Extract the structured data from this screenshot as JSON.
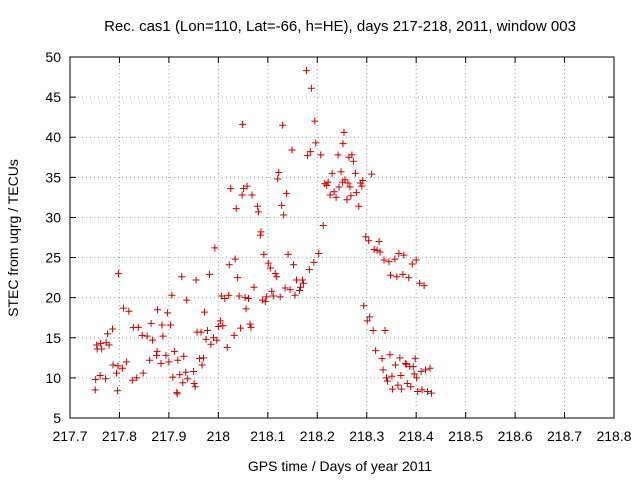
{
  "chart_data": {
    "type": "scatter",
    "title": "Rec. cas1 (Lon=110, Lat=-66, h=HE), days 217-218, 2011, window 003",
    "xlabel": "GPS time / Days of year 2011",
    "ylabel": "STEC from uqrg / TECUs",
    "xlim": [
      217.7,
      218.8
    ],
    "ylim": [
      5,
      50
    ],
    "xticks": [
      217.7,
      217.8,
      217.9,
      218.0,
      218.1,
      218.2,
      218.3,
      218.4,
      218.5,
      218.6,
      218.7,
      218.8
    ],
    "xtick_labels": [
      "217.7",
      "217.8",
      "217.9",
      "218",
      "218.1",
      "218.2",
      "218.3",
      "218.4",
      "218.5",
      "218.6",
      "218.7",
      "218.8"
    ],
    "yticks": [
      5,
      10,
      15,
      20,
      25,
      30,
      35,
      40,
      45,
      50
    ],
    "ytick_labels": [
      "5",
      "10",
      "15",
      "20",
      "25",
      "30",
      "35",
      "40",
      "45",
      "50"
    ],
    "grid": true,
    "marker": "+",
    "color": "#cc0000",
    "points": [
      [
        217.751,
        8.5
      ],
      [
        217.752,
        9.8
      ],
      [
        217.754,
        14.1
      ],
      [
        217.755,
        13.6
      ],
      [
        217.761,
        10.3
      ],
      [
        217.762,
        14.3
      ],
      [
        217.764,
        13.6
      ],
      [
        217.772,
        9.9
      ],
      [
        217.773,
        14.4
      ],
      [
        217.776,
        15.5
      ],
      [
        217.779,
        14.1
      ],
      [
        217.786,
        16.1
      ],
      [
        217.787,
        11.6
      ],
      [
        217.794,
        10.6
      ],
      [
        217.796,
        8.4
      ],
      [
        217.797,
        11.5
      ],
      [
        217.798,
        23.0
      ],
      [
        217.806,
        11.2
      ],
      [
        217.808,
        18.7
      ],
      [
        217.814,
        12.0
      ],
      [
        217.819,
        18.3
      ],
      [
        217.826,
        9.7
      ],
      [
        217.828,
        16.3
      ],
      [
        217.835,
        10.0
      ],
      [
        217.838,
        16.3
      ],
      [
        217.846,
        15.3
      ],
      [
        217.848,
        10.6
      ],
      [
        217.856,
        15.2
      ],
      [
        217.861,
        12.2
      ],
      [
        217.864,
        16.8
      ],
      [
        217.867,
        14.7
      ],
      [
        217.875,
        12.8
      ],
      [
        217.876,
        13.3
      ],
      [
        217.877,
        18.5
      ],
      [
        217.884,
        11.8
      ],
      [
        217.886,
        16.6
      ],
      [
        217.888,
        15.2
      ],
      [
        217.894,
        12.8
      ],
      [
        217.897,
        18.1
      ],
      [
        217.9,
        12.0
      ],
      [
        217.903,
        16.6
      ],
      [
        217.906,
        20.3
      ],
      [
        217.908,
        10.1
      ],
      [
        217.911,
        13.3
      ],
      [
        217.916,
        8.2
      ],
      [
        217.917,
        8.0
      ],
      [
        217.918,
        12.2
      ],
      [
        217.922,
        10.4
      ],
      [
        217.926,
        22.6
      ],
      [
        217.928,
        9.4
      ],
      [
        217.93,
        12.7
      ],
      [
        217.934,
        10.7
      ],
      [
        217.936,
        19.7
      ],
      [
        217.938,
        9.9
      ],
      [
        217.95,
        10.8
      ],
      [
        217.951,
        9.3
      ],
      [
        217.953,
        8.9
      ],
      [
        217.955,
        22.2
      ],
      [
        217.957,
        15.7
      ],
      [
        217.962,
        12.4
      ],
      [
        217.965,
        15.7
      ],
      [
        217.967,
        11.6
      ],
      [
        217.97,
        12.5
      ],
      [
        217.972,
        18.2
      ],
      [
        217.975,
        14.8
      ],
      [
        217.978,
        15.9
      ],
      [
        217.982,
        22.9
      ],
      [
        217.985,
        14.2
      ],
      [
        217.99,
        15.0
      ],
      [
        217.993,
        26.2
      ],
      [
        217.997,
        14.7
      ],
      [
        218.0,
        16.4
      ],
      [
        218.004,
        17.1
      ],
      [
        218.006,
        20.2
      ],
      [
        218.009,
        16.5
      ],
      [
        218.013,
        19.9
      ],
      [
        218.018,
        13.8
      ],
      [
        218.021,
        20.3
      ],
      [
        218.022,
        24.1
      ],
      [
        218.025,
        33.6
      ],
      [
        218.032,
        15.3
      ],
      [
        218.034,
        24.8
      ],
      [
        218.036,
        31.1
      ],
      [
        218.039,
        22.5
      ],
      [
        218.042,
        20.2
      ],
      [
        218.045,
        16.2
      ],
      [
        218.048,
        32.8
      ],
      [
        218.049,
        41.6
      ],
      [
        218.051,
        33.6
      ],
      [
        218.054,
        20.0
      ],
      [
        218.056,
        18.6
      ],
      [
        218.058,
        33.9
      ],
      [
        218.061,
        19.9
      ],
      [
        218.064,
        16.7
      ],
      [
        218.066,
        16.3
      ],
      [
        218.068,
        32.8
      ],
      [
        218.072,
        21.3
      ],
      [
        218.079,
        31.4
      ],
      [
        218.081,
        30.7
      ],
      [
        218.085,
        27.8
      ],
      [
        218.086,
        28.2
      ],
      [
        218.089,
        19.7
      ],
      [
        218.092,
        25.4
      ],
      [
        218.095,
        19.5
      ],
      [
        218.097,
        20.1
      ],
      [
        218.101,
        24.3
      ],
      [
        218.105,
        23.7
      ],
      [
        218.108,
        20.8
      ],
      [
        218.111,
        20.2
      ],
      [
        218.115,
        23.0
      ],
      [
        218.118,
        22.6
      ],
      [
        218.12,
        34.8
      ],
      [
        218.122,
        35.6
      ],
      [
        218.125,
        20.1
      ],
      [
        218.128,
        31.5
      ],
      [
        218.13,
        41.5
      ],
      [
        218.132,
        30.3
      ],
      [
        218.135,
        21.2
      ],
      [
        218.138,
        33.0
      ],
      [
        218.141,
        25.4
      ],
      [
        218.145,
        21.0
      ],
      [
        218.149,
        38.4
      ],
      [
        218.152,
        24.1
      ],
      [
        218.155,
        20.3
      ],
      [
        218.158,
        22.2
      ],
      [
        218.164,
        20.9
      ],
      [
        218.166,
        21.3
      ],
      [
        218.17,
        22.2
      ],
      [
        218.172,
        21.8
      ],
      [
        218.178,
        48.3
      ],
      [
        218.18,
        37.7
      ],
      [
        218.184,
        23.5
      ],
      [
        218.186,
        38.2
      ],
      [
        218.188,
        46.1
      ],
      [
        218.193,
        24.4
      ],
      [
        218.195,
        42.0
      ],
      [
        218.197,
        39.3
      ],
      [
        218.203,
        25.5
      ],
      [
        218.207,
        37.8
      ],
      [
        218.212,
        29.0
      ],
      [
        218.215,
        34.2
      ],
      [
        218.219,
        34.0
      ],
      [
        218.222,
        34.4
      ],
      [
        218.226,
        32.8
      ],
      [
        218.23,
        35.5
      ],
      [
        218.234,
        33.2
      ],
      [
        218.238,
        32.5
      ],
      [
        218.242,
        37.8
      ],
      [
        218.244,
        33.8
      ],
      [
        218.248,
        35.7
      ],
      [
        218.251,
        34.4
      ],
      [
        218.254,
        40.6
      ],
      [
        218.252,
        39.2
      ],
      [
        218.256,
        34.7
      ],
      [
        218.26,
        32.2
      ],
      [
        218.262,
        34.3
      ],
      [
        218.264,
        37.5
      ],
      [
        218.266,
        33.8
      ],
      [
        218.268,
        32.7
      ],
      [
        218.27,
        37.8
      ],
      [
        218.273,
        37.0
      ],
      [
        218.277,
        35.5
      ],
      [
        218.279,
        33.1
      ],
      [
        218.284,
        31.4
      ],
      [
        218.287,
        34.3
      ],
      [
        218.29,
        33.9
      ],
      [
        218.292,
        34.6
      ],
      [
        218.294,
        19.0
      ],
      [
        218.298,
        27.6
      ],
      [
        218.301,
        17.1
      ],
      [
        218.304,
        27.1
      ],
      [
        218.306,
        17.6
      ],
      [
        218.31,
        35.4
      ],
      [
        218.313,
        15.9
      ],
      [
        218.315,
        26.0
      ],
      [
        218.318,
        13.4
      ],
      [
        218.321,
        25.9
      ],
      [
        218.325,
        27.0
      ],
      [
        218.327,
        25.7
      ],
      [
        218.331,
        12.4
      ],
      [
        218.333,
        11.0
      ],
      [
        218.335,
        24.7
      ],
      [
        218.337,
        15.9
      ],
      [
        218.34,
        10.0
      ],
      [
        218.342,
        9.6
      ],
      [
        218.345,
        24.5
      ],
      [
        218.347,
        12.9
      ],
      [
        218.348,
        22.8
      ],
      [
        218.351,
        10.2
      ],
      [
        218.352,
        8.6
      ],
      [
        218.357,
        24.8
      ],
      [
        218.358,
        11.6
      ],
      [
        218.361,
        22.6
      ],
      [
        218.363,
        9.1
      ],
      [
        218.365,
        25.5
      ],
      [
        218.367,
        12.5
      ],
      [
        218.369,
        10.3
      ],
      [
        218.37,
        8.6
      ],
      [
        218.373,
        22.9
      ],
      [
        218.375,
        25.3
      ],
      [
        218.378,
        11.8
      ],
      [
        218.38,
        11.7
      ],
      [
        218.382,
        9.3
      ],
      [
        218.385,
        22.5
      ],
      [
        218.387,
        11.4
      ],
      [
        218.389,
        8.9
      ],
      [
        218.392,
        24.2
      ],
      [
        218.394,
        11.4
      ],
      [
        218.396,
        10.5
      ],
      [
        218.398,
        12.4
      ],
      [
        218.4,
        24.7
      ],
      [
        218.401,
        10.0
      ],
      [
        218.403,
        8.3
      ],
      [
        218.407,
        21.8
      ],
      [
        218.41,
        10.8
      ],
      [
        218.412,
        8.5
      ],
      [
        218.416,
        21.5
      ],
      [
        218.419,
        11.0
      ],
      [
        218.423,
        8.3
      ],
      [
        218.428,
        11.2
      ],
      [
        218.431,
        8.1
      ]
    ]
  }
}
